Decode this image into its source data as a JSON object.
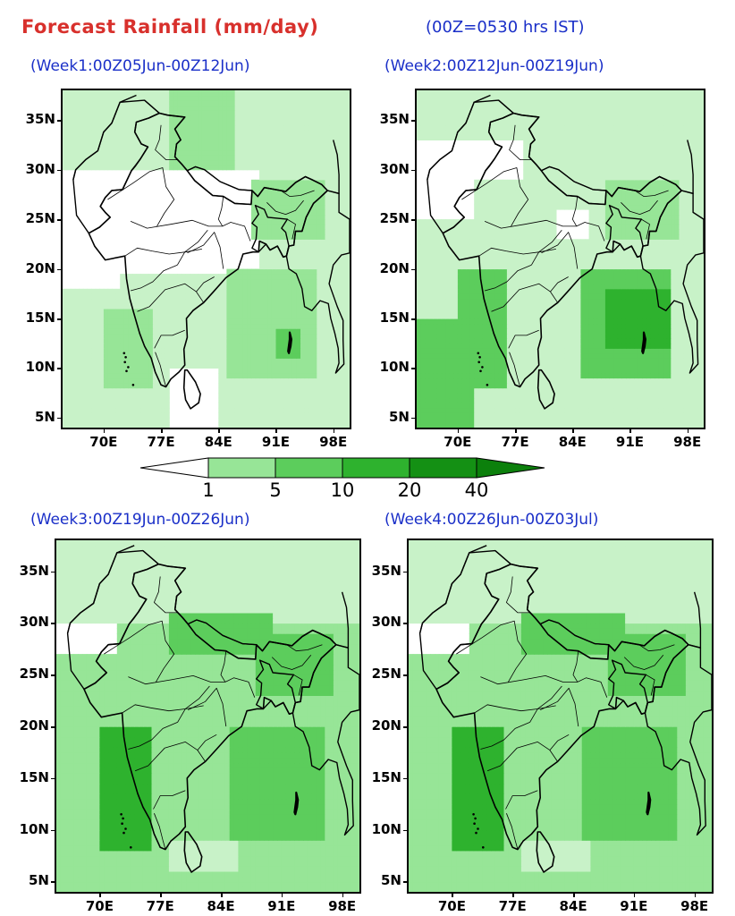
{
  "title": "Forecast Rainfall (mm/day)",
  "subtitle": "(00Z=0530 hrs IST)",
  "colors": {
    "c1": "#c8f2c8",
    "c2": "#97e597",
    "c3": "#5ccd5c",
    "c4": "#2eb22e",
    "c5": "#149014",
    "border": "#000000",
    "title": "#d8302c",
    "subtitle": "#1a2fc8"
  },
  "colorbar": {
    "labels": [
      "1",
      "5",
      "10",
      "20",
      "40"
    ]
  },
  "axes": {
    "y_ticks": [
      "35N",
      "30N",
      "25N",
      "20N",
      "15N",
      "10N",
      "5N"
    ],
    "x_ticks": [
      "70E",
      "77E",
      "84E",
      "91E",
      "98E"
    ]
  },
  "panels": [
    {
      "id": "week1",
      "title": "(Week1:00Z05Jun-00Z12Jun)",
      "intensity": 1
    },
    {
      "id": "week2",
      "title": "(Week2:00Z12Jun-00Z19Jun)",
      "intensity": 2
    },
    {
      "id": "week3",
      "title": "(Week3:00Z19Jun-00Z26Jun)",
      "intensity": 3
    },
    {
      "id": "week4",
      "title": "(Week4:00Z26Jun-00Z03Jul)",
      "intensity": 3
    }
  ]
}
